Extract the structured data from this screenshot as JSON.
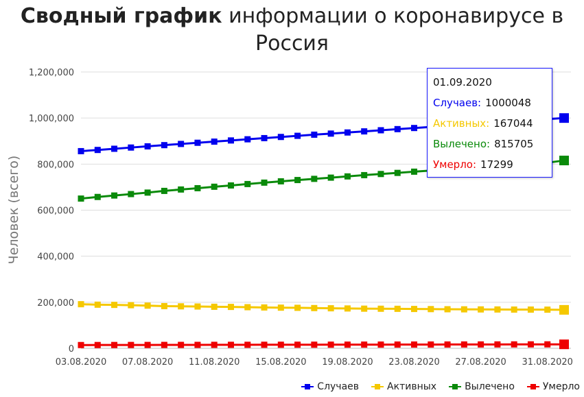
{
  "title": {
    "bold": "Сводный график",
    "rest": " информации о коронавирусе в Россия"
  },
  "chart_data": {
    "type": "line",
    "ylabel": "Человек (всего)",
    "ylim": [
      0,
      1200000
    ],
    "yticks": [
      "0",
      "200,000",
      "400,000",
      "600,000",
      "800,000",
      "1,000,000",
      "1,200,000"
    ],
    "grid": true,
    "legend_position": "bottom-right",
    "x": [
      "03.08.2020",
      "04.08.2020",
      "05.08.2020",
      "06.08.2020",
      "07.08.2020",
      "08.08.2020",
      "09.08.2020",
      "10.08.2020",
      "11.08.2020",
      "12.08.2020",
      "13.08.2020",
      "14.08.2020",
      "15.08.2020",
      "16.08.2020",
      "17.08.2020",
      "18.08.2020",
      "19.08.2020",
      "20.08.2020",
      "21.08.2020",
      "22.08.2020",
      "23.08.2020",
      "24.08.2020",
      "25.08.2020",
      "26.08.2020",
      "27.08.2020",
      "28.08.2020",
      "29.08.2020",
      "30.08.2020",
      "31.08.2020",
      "01.09.2020"
    ],
    "xticks": [
      "03.08.2020",
      "07.08.2020",
      "11.08.2020",
      "15.08.2020",
      "19.08.2020",
      "23.08.2020",
      "27.08.2020",
      "31.08.2020"
    ],
    "series": [
      {
        "name": "Случаев",
        "color": "#0000ee",
        "values": [
          856264,
          861423,
          866627,
          871894,
          877135,
          882347,
          887536,
          892654,
          897599,
          902701,
          907758,
          912823,
          917884,
          922853,
          927745,
          932493,
          937321,
          942106,
          946976,
          951897,
          956749,
          961493,
          966189,
          970865,
          975576,
          980405,
          985346,
          990326,
          995319,
          1000048
        ]
      },
      {
        "name": "Активных",
        "color": "#f5c800",
        "values": [
          191600,
          189500,
          188600,
          187200,
          185400,
          183200,
          182300,
          181600,
          180400,
          179800,
          178600,
          177400,
          176600,
          175900,
          174800,
          173900,
          173100,
          172200,
          171900,
          171600,
          170900,
          170300,
          169700,
          169300,
          168900,
          168700,
          168300,
          168200,
          167900,
          167044
        ]
      },
      {
        "name": "Вылечено",
        "color": "#0a8a0a",
        "values": [
          650300,
          657300,
          663600,
          669800,
          676300,
          683600,
          689700,
          695400,
          701700,
          707300,
          713400,
          719500,
          725200,
          730800,
          735900,
          741200,
          746600,
          752100,
          757000,
          761800,
          767100,
          772100,
          777000,
          781700,
          786300,
          791200,
          796100,
          801000,
          806000,
          815705
        ]
      },
      {
        "name": "Умерло",
        "color": "#ee0000",
        "values": [
          14207,
          14351,
          14465,
          14579,
          14698,
          14803,
          14903,
          14995,
          15131,
          15231,
          15353,
          15462,
          15585,
          15685,
          15772,
          15872,
          15985,
          16099,
          16189,
          16310,
          16383,
          16448,
          16568,
          16683,
          16804,
          16914,
          17028,
          17128,
          17176,
          17299
        ]
      }
    ],
    "tooltip": {
      "date": "01.09.2020",
      "rows": [
        {
          "label": "Случаев:",
          "value": "1000048",
          "color": "#0000ee"
        },
        {
          "label": "Активных:",
          "value": "167044",
          "color": "#f5c800"
        },
        {
          "label": "Вылечено:",
          "value": "815705",
          "color": "#0a8a0a"
        },
        {
          "label": "Умерло:",
          "value": "17299",
          "color": "#ee0000"
        }
      ]
    }
  }
}
